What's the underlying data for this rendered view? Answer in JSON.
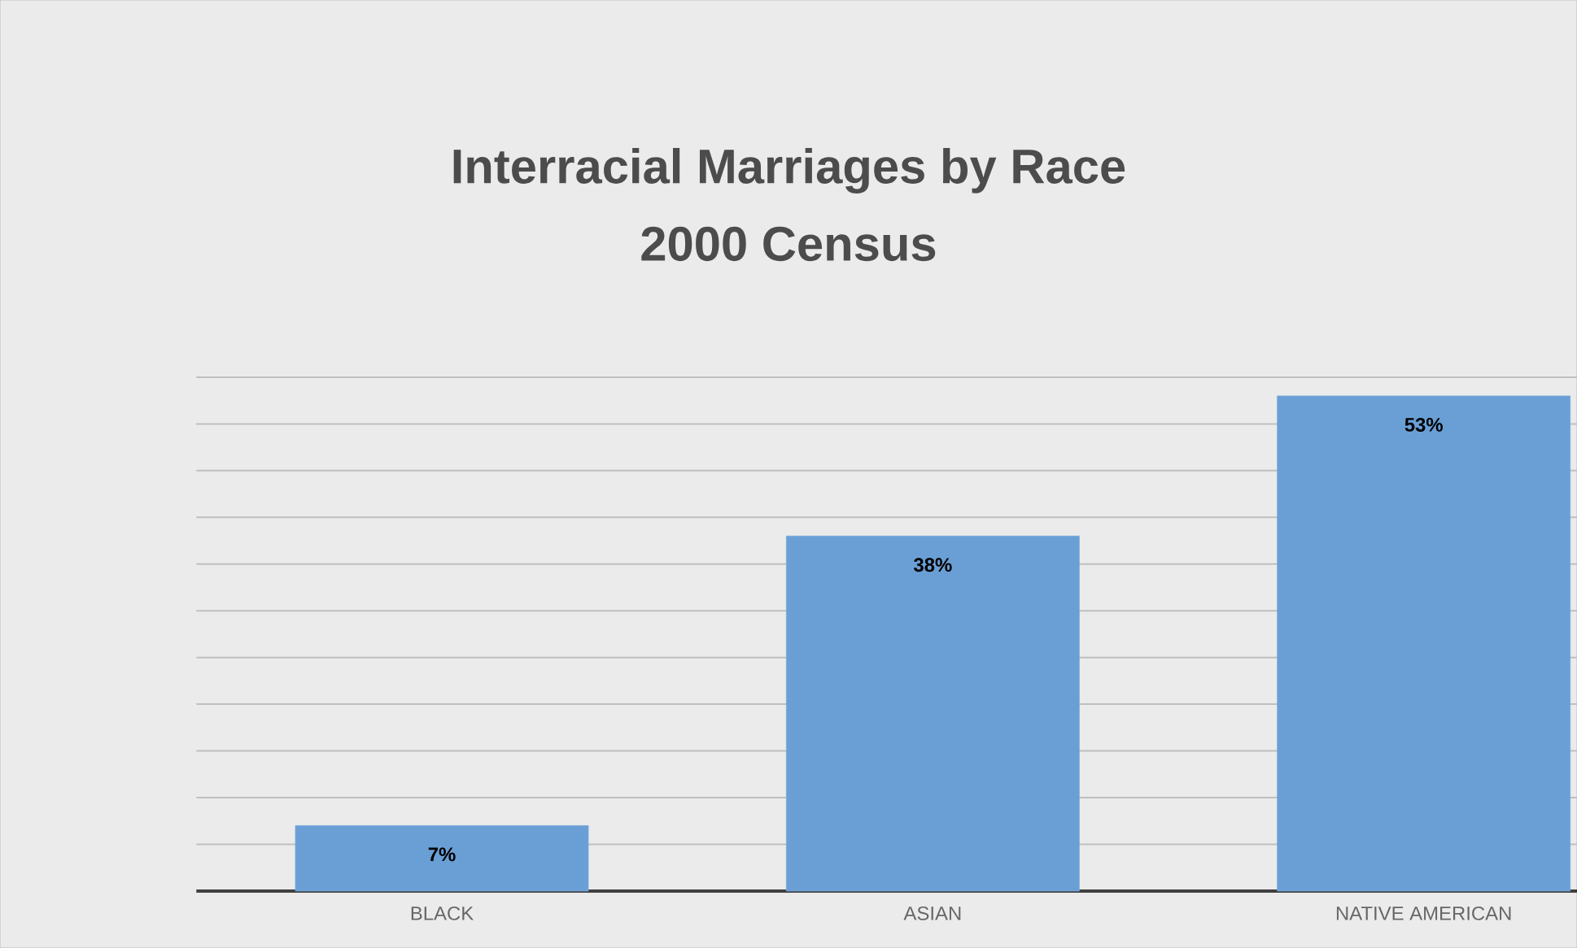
{
  "chart_data": {
    "type": "bar",
    "title": "Interracial Marriages by Race",
    "subtitle": "2000 Census",
    "categories": [
      "BLACK",
      "ASIAN",
      "NATIVE AMERICAN"
    ],
    "values": [
      7,
      38,
      53
    ],
    "value_labels": [
      "7%",
      "38%",
      "53%"
    ],
    "color": "#6a9fd6",
    "grid": "y",
    "tick_labels": "x"
  }
}
